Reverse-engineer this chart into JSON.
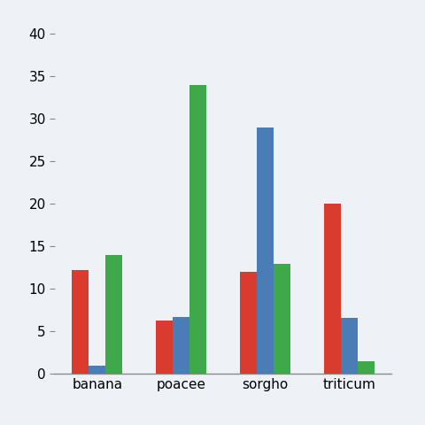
{
  "categories": [
    "banana",
    "poacee",
    "sorgho",
    "triticum"
  ],
  "series": {
    "red": [
      12.2,
      6.3,
      12.0,
      20.0
    ],
    "blue": [
      1.0,
      6.7,
      29.0,
      6.6
    ],
    "green": [
      14.0,
      34.0,
      13.0,
      1.5
    ]
  },
  "colors": {
    "red": "#d93b2e",
    "blue": "#4a7cb5",
    "green": "#3fa84a"
  },
  "ylim": [
    0,
    40
  ],
  "yticks": [
    0,
    5,
    10,
    15,
    20,
    25,
    30,
    35,
    40
  ],
  "background_color": "#eef2f7",
  "bar_width": 0.2,
  "tick_fontsize": 11,
  "label_fontsize": 11
}
